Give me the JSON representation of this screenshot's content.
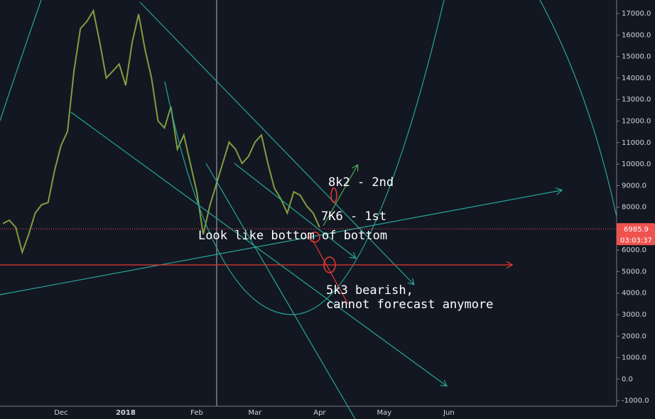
{
  "chart_data": {
    "type": "line",
    "categories": [
      null,
      null,
      null,
      null,
      null,
      null,
      null,
      null,
      null,
      "Dec",
      null,
      null,
      null,
      null,
      null,
      null,
      null,
      null,
      null,
      "2018",
      null,
      null,
      null,
      null,
      null,
      null,
      null,
      null,
      null,
      null,
      "Feb",
      null,
      null,
      null,
      null,
      null,
      null,
      null,
      null,
      "Mar",
      null,
      null,
      null,
      null,
      null,
      null,
      null,
      null,
      null,
      "Apr",
      null,
      null,
      null,
      null,
      null,
      null,
      null,
      null,
      null,
      "May",
      null,
      null,
      null,
      null,
      null,
      null,
      null,
      null,
      null,
      "Jun",
      null,
      null,
      null,
      null,
      null,
      null,
      null,
      null,
      null,
      null,
      null,
      null,
      null,
      null,
      null,
      null,
      null,
      null,
      null,
      null,
      null,
      null,
      null,
      null,
      null,
      null
    ],
    "series": [
      {
        "color": "#7f9f3f",
        "values": [
          7230,
          7390,
          7060,
          5900,
          6730,
          7720,
          8110,
          8210,
          9700,
          10860,
          11520,
          14320,
          16300,
          16640,
          17130,
          15650,
          14000,
          14320,
          14650,
          13660,
          15650,
          16970,
          15320,
          14000,
          12010,
          11680,
          12670,
          10690,
          11350,
          10030,
          8710,
          6730,
          8050,
          9040,
          10030,
          11020,
          10690,
          10030,
          10360,
          11020,
          11350,
          10030,
          8880,
          8380,
          7720,
          8710,
          8550,
          8050,
          7720,
          7060,
          null,
          null,
          null,
          null,
          null,
          null,
          null,
          null,
          null,
          null,
          null,
          null,
          null,
          null,
          null,
          null,
          null,
          null,
          null,
          null,
          null,
          null,
          null,
          null,
          null,
          null,
          null,
          null,
          null,
          null,
          null,
          null,
          null,
          null,
          null,
          null,
          null,
          null,
          null,
          null,
          null,
          null,
          null,
          null,
          null,
          null
        ]
      }
    ],
    "ylim": [
      -1260,
      17630
    ],
    "yticks": [
      {
        "value": -1000,
        "label": "-1000.0"
      },
      {
        "value": 0,
        "label": "0.0"
      },
      {
        "value": 1000,
        "label": "1000.0"
      },
      {
        "value": 2000,
        "label": "2000.0"
      },
      {
        "value": 3000,
        "label": "3000.0"
      },
      {
        "value": 4000,
        "label": "4000.0"
      },
      {
        "value": 5000,
        "label": "5000.0"
      },
      {
        "value": 6000,
        "label": "6000.0"
      },
      {
        "value": 7000,
        "label": "7000.0"
      },
      {
        "value": 8000,
        "label": "8000.0"
      },
      {
        "value": 9000,
        "label": "9000.0"
      },
      {
        "value": 10000,
        "label": "10000.0"
      },
      {
        "value": 11000,
        "label": "11000.0"
      },
      {
        "value": 12000,
        "label": "12000.0"
      },
      {
        "value": 13000,
        "label": "13000.0"
      },
      {
        "value": 14000,
        "label": "14000.0"
      },
      {
        "value": 15000,
        "label": "15000.0"
      },
      {
        "value": 16000,
        "label": "16000.0"
      },
      {
        "value": 17000,
        "label": "17000.0"
      }
    ],
    "last_price": 6985.9,
    "last_price_color": "#ef5350",
    "countdown": "03:03:37",
    "annotations": [
      "8k2 - 2nd",
      "7K6 - 1st",
      "Look like bottom of bottom",
      [
        "5k3 bearish,",
        "cannot forecast anymore"
      ]
    ]
  }
}
